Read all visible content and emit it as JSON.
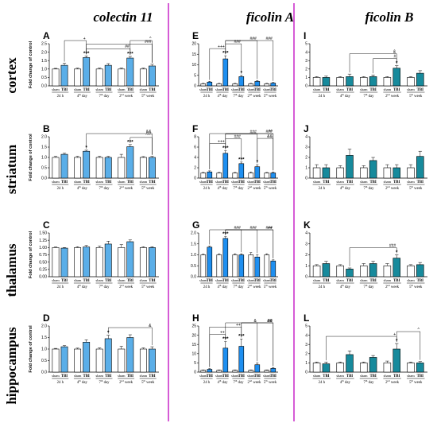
{
  "column_titles": [
    "colectin 11",
    "ficolin A",
    "ficolin B"
  ],
  "row_titles": [
    "cortex",
    "striatum",
    "thalamus",
    "hippocampus"
  ],
  "colors": {
    "sham": "#ffffff",
    "colectin11_tbi": "#5aaee8",
    "ficolinA_tbi": "#1e8ff0",
    "ficolinB_tbi": "#178a9c",
    "separator": "#cc33cc"
  },
  "chart_data": [
    {
      "panel": "A",
      "type": "bar",
      "ylabel": "Fold change of control",
      "ylim": [
        0,
        2.5
      ],
      "yticks": [
        "0.0",
        "0.5",
        "1.0",
        "1.5",
        "2.0",
        "2.5"
      ],
      "groups": [
        "24 h",
        "4th day",
        "7th day",
        "2nd week",
        "5th week"
      ],
      "sham": [
        1.0,
        1.0,
        1.0,
        1.0,
        1.0
      ],
      "tbi": [
        1.22,
        1.68,
        1.22,
        1.65,
        1.18
      ],
      "sham_err": [
        0.04,
        0.05,
        0.05,
        0.05,
        0.05
      ],
      "tbi_err": [
        0.12,
        0.1,
        0.1,
        0.1,
        0.1
      ],
      "stars": [
        "",
        "***",
        "",
        "***",
        ""
      ],
      "brackets": [
        {
          "from": 1,
          "to": 3,
          "label": "##"
        },
        {
          "from": 1,
          "to": 4,
          "label": "###"
        },
        {
          "from": 0,
          "to": 1,
          "label": "+"
        },
        {
          "from": 3,
          "to": 4,
          "label": "^"
        }
      ]
    },
    {
      "panel": "E",
      "type": "bar",
      "ylabel": "",
      "ylim": [
        0,
        20
      ],
      "yticks": [
        "0",
        "5",
        "10",
        "15",
        "20"
      ],
      "groups": [
        "24 h",
        "4th day",
        "7th day",
        "2nd week",
        "5th week"
      ],
      "sham": [
        1.0,
        1.0,
        1.0,
        1.0,
        1.0
      ],
      "tbi": [
        1.8,
        12.8,
        4.4,
        2.1,
        1.3
      ],
      "sham_err": [
        0.2,
        0.2,
        0.2,
        0.2,
        0.2
      ],
      "tbi_err": [
        0.3,
        1.5,
        0.6,
        0.4,
        0.3
      ],
      "stars": [
        "",
        "***",
        "*",
        "",
        ""
      ],
      "brackets": [
        {
          "from": 0,
          "to": 1,
          "label": "+++"
        },
        {
          "from": 1,
          "to": 2,
          "label": "###"
        },
        {
          "from": 1,
          "to": 3,
          "label": "###"
        },
        {
          "from": 1,
          "to": 4,
          "label": "###"
        }
      ]
    },
    {
      "panel": "I",
      "type": "bar",
      "ylabel": "",
      "ylim": [
        0,
        5
      ],
      "yticks": [
        "0",
        "1",
        "2",
        "3",
        "4",
        "5"
      ],
      "groups": [
        "24 h",
        "4th day",
        "7th day",
        "2nd week",
        "5th week"
      ],
      "sham": [
        1.0,
        1.0,
        1.0,
        1.0,
        1.0
      ],
      "tbi": [
        1.0,
        1.1,
        1.1,
        2.1,
        1.5
      ],
      "sham_err": [
        0.1,
        0.1,
        0.1,
        0.1,
        0.1
      ],
      "tbi_err": [
        0.15,
        0.3,
        0.2,
        0.3,
        0.3
      ],
      "stars": [
        "",
        "",
        "",
        "*",
        ""
      ],
      "brackets": [
        {
          "from": 2,
          "to": 3,
          "label": "#"
        },
        {
          "from": 1,
          "to": 3,
          "label": "&"
        }
      ]
    },
    {
      "panel": "B",
      "type": "bar",
      "ylabel": "Fold change of control",
      "ylim": [
        0,
        2.0
      ],
      "yticks": [
        "0.0",
        "0.5",
        "1.0",
        "1.5",
        "2.0"
      ],
      "groups": [
        "24 h",
        "4th day",
        "7th day",
        "2nd week",
        "5th week"
      ],
      "sham": [
        1.0,
        1.0,
        1.0,
        1.0,
        1.0
      ],
      "tbi": [
        1.15,
        1.3,
        1.0,
        1.52,
        1.0
      ],
      "sham_err": [
        0.05,
        0.05,
        0.05,
        0.15,
        0.04
      ],
      "tbi_err": [
        0.05,
        0.05,
        0.05,
        0.1,
        0.05
      ],
      "stars": [
        "",
        "*",
        "",
        "***",
        ""
      ],
      "brackets": [
        {
          "from": 3,
          "to": 4,
          "label": "^^^"
        },
        {
          "from": 1,
          "to": 4,
          "label": "&&"
        }
      ]
    },
    {
      "panel": "F",
      "type": "bar",
      "ylabel": "",
      "ylim": [
        0,
        8
      ],
      "yticks": [
        "0",
        "2",
        "4",
        "6",
        "8"
      ],
      "groups": [
        "24 h",
        "4th day",
        "7th day",
        "2nd week",
        "5th week"
      ],
      "sham": [
        1.0,
        1.0,
        1.0,
        1.0,
        1.0
      ],
      "tbi": [
        1.2,
        4.8,
        2.8,
        2.2,
        1.0
      ],
      "sham_err": [
        0.1,
        0.1,
        0.1,
        0.2,
        0.1
      ],
      "tbi_err": [
        0.2,
        0.5,
        0.3,
        0.4,
        0.2
      ],
      "stars": [
        "",
        "***",
        "***",
        "*",
        ""
      ],
      "brackets": [
        {
          "from": 0,
          "to": 1,
          "label": "+++"
        },
        {
          "from": 1,
          "to": 2,
          "label": "###"
        },
        {
          "from": 1,
          "to": 3,
          "label": "###"
        },
        {
          "from": 1,
          "to": 4,
          "label": "###"
        },
        {
          "from": 3,
          "to": 4,
          "label": "&&"
        },
        {
          "from": 0,
          "to": 4,
          "label": "^^"
        }
      ]
    },
    {
      "panel": "J",
      "type": "bar",
      "ylabel": "",
      "ylim": [
        0,
        4
      ],
      "yticks": [
        "0",
        "1",
        "2",
        "3",
        "4"
      ],
      "groups": [
        "24 h",
        "4th day",
        "7th day",
        "2nd week",
        "5th week"
      ],
      "sham": [
        1.0,
        1.0,
        1.0,
        1.0,
        1.0
      ],
      "tbi": [
        1.0,
        2.2,
        1.7,
        1.0,
        2.1
      ],
      "sham_err": [
        0.3,
        0.2,
        0.2,
        0.3,
        0.3
      ],
      "tbi_err": [
        0.3,
        0.6,
        0.3,
        0.3,
        0.5
      ],
      "stars": [
        "",
        "",
        "",
        "",
        ""
      ],
      "brackets": []
    },
    {
      "panel": "C",
      "type": "bar",
      "ylabel": "Fold change of control",
      "ylim": [
        0,
        1.5
      ],
      "yticks": [
        "0.00",
        "0.25",
        "0.50",
        "0.75",
        "1.00",
        "1.25",
        "1.50"
      ],
      "groups": [
        "24 h",
        "4th day",
        "7th day",
        "2nd week",
        "5th week"
      ],
      "sham": [
        1.0,
        1.0,
        1.0,
        1.0,
        1.0
      ],
      "tbi": [
        0.98,
        1.02,
        1.12,
        1.2,
        1.0
      ],
      "sham_err": [
        0.02,
        0.03,
        0.05,
        0.1,
        0.03
      ],
      "tbi_err": [
        0.02,
        0.05,
        0.1,
        0.06,
        0.03
      ],
      "stars": [
        "",
        "",
        "",
        "",
        ""
      ],
      "brackets": []
    },
    {
      "panel": "G",
      "type": "bar",
      "ylabel": "",
      "ylim": [
        0,
        2.0
      ],
      "yticks": [
        "0.0",
        "0.5",
        "1.0",
        "1.5",
        "2.0"
      ],
      "groups": [
        "24 h",
        "4th day",
        "7th day",
        "2nd week",
        "5th week"
      ],
      "sham": [
        1.0,
        1.0,
        1.0,
        1.0,
        1.0
      ],
      "tbi": [
        1.35,
        1.75,
        1.0,
        0.9,
        0.72
      ],
      "sham_err": [
        0.03,
        0.05,
        0.05,
        0.1,
        0.05
      ],
      "tbi_err": [
        0.05,
        0.08,
        0.05,
        0.1,
        0.05
      ],
      "stars": [
        "",
        "***",
        "",
        "",
        ""
      ],
      "brackets": [
        {
          "from": 1,
          "to": 2,
          "label": "###"
        },
        {
          "from": 1,
          "to": 3,
          "label": "###"
        },
        {
          "from": 1,
          "to": 4,
          "label": "###"
        },
        {
          "from": 0,
          "to": 4,
          "label": "++"
        }
      ]
    },
    {
      "panel": "K",
      "type": "bar",
      "ylabel": "",
      "ylim": [
        0,
        4
      ],
      "yticks": [
        "0",
        "1",
        "2",
        "3",
        "4"
      ],
      "groups": [
        "24 h",
        "4th day",
        "7th day",
        "2nd week",
        "5th week"
      ],
      "sham": [
        1.0,
        1.0,
        1.0,
        1.0,
        1.0
      ],
      "tbi": [
        1.2,
        0.7,
        1.2,
        1.7,
        1.1
      ],
      "sham_err": [
        0.1,
        0.1,
        0.2,
        0.2,
        0.1
      ],
      "tbi_err": [
        0.2,
        0.1,
        0.2,
        0.3,
        0.2
      ],
      "stars": [
        "",
        "",
        "",
        "*",
        ""
      ],
      "brackets": [
        {
          "from": 1,
          "to": 3,
          "label": "###"
        }
      ]
    },
    {
      "panel": "D",
      "type": "bar",
      "ylabel": "Fold change of control",
      "ylim": [
        0,
        2.0
      ],
      "yticks": [
        "0.0",
        "0.5",
        "1.0",
        "1.5",
        "2.0"
      ],
      "groups": [
        "24 h",
        "4th day",
        "7th day",
        "2nd week",
        "5th week"
      ],
      "sham": [
        1.0,
        1.0,
        1.0,
        1.0,
        1.0
      ],
      "tbi": [
        1.1,
        1.3,
        1.45,
        1.5,
        1.0
      ],
      "sham_err": [
        0.03,
        0.04,
        0.05,
        0.12,
        0.05
      ],
      "tbi_err": [
        0.05,
        0.1,
        0.15,
        0.12,
        0.1
      ],
      "stars": [
        "",
        "",
        "*",
        "",
        ""
      ],
      "brackets": [
        {
          "from": 2,
          "to": 4,
          "label": "&"
        }
      ]
    },
    {
      "panel": "H",
      "type": "bar",
      "ylabel": "",
      "ylim": [
        0,
        25
      ],
      "yticks": [
        "0",
        "5",
        "10",
        "15",
        "20",
        "25"
      ],
      "groups": [
        "24 h",
        "4th day",
        "7th day",
        "2nd week",
        "5th week"
      ],
      "sham": [
        1.0,
        1.0,
        1.0,
        1.0,
        1.0
      ],
      "tbi": [
        1.5,
        13.0,
        14.0,
        4.0,
        2.0
      ],
      "sham_err": [
        0.2,
        0.2,
        0.2,
        0.2,
        0.2
      ],
      "tbi_err": [
        0.4,
        3.5,
        4.0,
        1.0,
        0.5
      ],
      "stars": [
        "",
        "***",
        "***",
        "",
        ""
      ],
      "brackets": [
        {
          "from": 0,
          "to": 1,
          "label": "++"
        },
        {
          "from": 0,
          "to": 2,
          "label": "++"
        },
        {
          "from": 1,
          "to": 4,
          "label": "##"
        },
        {
          "from": 2,
          "to": 4,
          "label": "&&"
        },
        {
          "from": 2,
          "to": 3,
          "label": "&"
        }
      ]
    },
    {
      "panel": "L",
      "type": "bar",
      "ylabel": "",
      "ylim": [
        0,
        5
      ],
      "yticks": [
        "0",
        "1",
        "2",
        "3",
        "4",
        "5"
      ],
      "groups": [
        "24 h",
        "4th day",
        "7th day",
        "2nd week",
        "5th week"
      ],
      "sham": [
        1.0,
        1.0,
        1.0,
        1.0,
        1.0
      ],
      "tbi": [
        0.9,
        1.9,
        1.6,
        2.5,
        1.0
      ],
      "sham_err": [
        0.1,
        0.1,
        0.1,
        0.2,
        0.1
      ],
      "tbi_err": [
        0.2,
        0.4,
        0.2,
        0.6,
        0.15
      ],
      "stars": [
        "",
        "",
        "",
        "*",
        ""
      ],
      "brackets": [
        {
          "from": 0,
          "to": 3,
          "label": "+"
        },
        {
          "from": 3,
          "to": 4,
          "label": "^"
        }
      ]
    }
  ],
  "x_labels": {
    "sham": "sham",
    "tbi": "TBI",
    "groups": [
      {
        "num": "24 h",
        "sup": ""
      },
      {
        "num": "4",
        "sup": "th",
        "rest": " day"
      },
      {
        "num": "7",
        "sup": "th",
        "rest": " day"
      },
      {
        "num": "2",
        "sup": "nd",
        "rest": " week"
      },
      {
        "num": "5",
        "sup": "th",
        "rest": " week"
      }
    ]
  }
}
